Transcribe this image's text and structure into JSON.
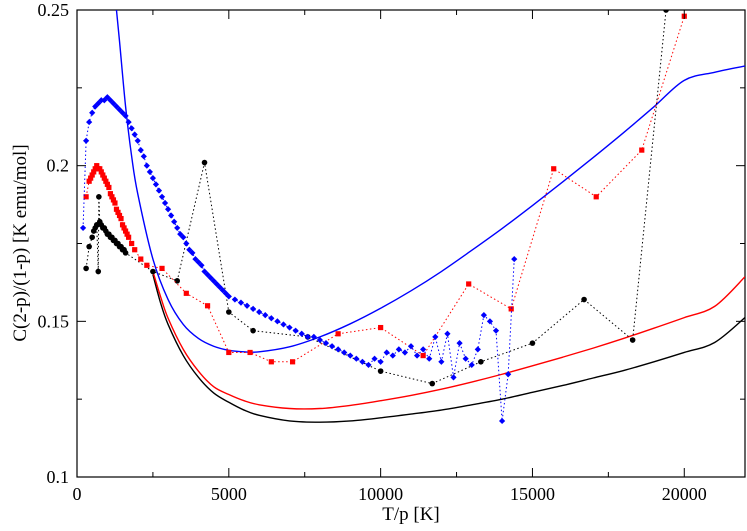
{
  "chart_data": {
    "type": "scatter",
    "title": "",
    "xlabel": "T/p [K]",
    "ylabel": "C(2-p)/(1-p) [K emu/mol]",
    "xlim": [
      0,
      22000
    ],
    "ylim": [
      0.1,
      0.25
    ],
    "xticks": [
      0,
      5000,
      10000,
      15000,
      20000
    ],
    "xtick_labels": [
      "0",
      "5000",
      "10000",
      "15000",
      "20000"
    ],
    "yticks": [
      0.1,
      0.15,
      0.2,
      0.25
    ],
    "ytick_labels": [
      "0.1",
      "0.15",
      "0.2",
      "0.25"
    ],
    "grid": false,
    "series": [
      {
        "name": "black data",
        "color": "#000000",
        "marker": "circle",
        "linestyle": "dotted",
        "x": [
          300,
          400,
          500,
          550,
          600,
          650,
          700,
          720,
          750,
          800,
          850,
          900,
          950,
          1000,
          1050,
          1100,
          1150,
          1200,
          1250,
          1300,
          1350,
          1400,
          1450,
          1500,
          1550,
          1600,
          2500,
          3300,
          4200,
          5000,
          5800,
          7600,
          10000,
          11700,
          13300,
          15000,
          16700,
          18300,
          19400
        ],
        "y": [
          0.167,
          0.174,
          0.177,
          0.179,
          0.18,
          0.181,
          0.166,
          0.19,
          0.182,
          0.181,
          0.18,
          0.18,
          0.179,
          0.178,
          0.178,
          0.177,
          0.177,
          0.176,
          0.176,
          0.175,
          0.175,
          0.174,
          0.174,
          0.173,
          0.173,
          0.172,
          0.166,
          0.163,
          0.201,
          0.153,
          0.147,
          0.145,
          0.134,
          0.13,
          0.137,
          0.143,
          0.157,
          0.144,
          0.25
        ]
      },
      {
        "name": "red data",
        "color": "#ff0000",
        "marker": "square",
        "linestyle": "dotted",
        "x": [
          300,
          400,
          450,
          500,
          550,
          600,
          650,
          700,
          750,
          800,
          850,
          900,
          950,
          1000,
          1050,
          1100,
          1150,
          1200,
          1250,
          1300,
          1350,
          1400,
          1450,
          1500,
          1550,
          1600,
          1650,
          1700,
          1800,
          1900,
          2100,
          2300,
          2800,
          3600,
          4300,
          5000,
          5700,
          6400,
          7100,
          8600,
          10000,
          11400,
          12900,
          14300,
          15700,
          17100,
          18600,
          20000
        ],
        "y": [
          0.19,
          0.195,
          0.196,
          0.197,
          0.198,
          0.199,
          0.2,
          0.199,
          0.199,
          0.198,
          0.197,
          0.196,
          0.195,
          0.194,
          0.193,
          0.191,
          0.19,
          0.189,
          0.188,
          0.186,
          0.185,
          0.184,
          0.183,
          0.181,
          0.18,
          0.179,
          0.178,
          0.177,
          0.175,
          0.173,
          0.17,
          0.168,
          0.167,
          0.159,
          0.155,
          0.14,
          0.14,
          0.137,
          0.137,
          0.146,
          0.148,
          0.139,
          0.162,
          0.154,
          0.199,
          0.19,
          0.205,
          0.248
        ]
      },
      {
        "name": "blue data",
        "color": "#0000ff",
        "marker": "diamond",
        "linestyle": "dotted",
        "x": [
          200,
          300,
          400,
          500,
          600,
          700,
          800,
          900,
          1000,
          1100,
          1200,
          1300,
          1400,
          1500,
          1600,
          1700,
          1800,
          1900,
          2000,
          2100,
          2200,
          2300,
          2400,
          2500,
          2600,
          2700,
          2800,
          2900,
          3000,
          3100,
          3200,
          3300,
          3400,
          3500,
          3600,
          3700,
          3800,
          3900,
          4000,
          4100,
          4200,
          4300,
          4400,
          4500,
          4600,
          4700,
          4800,
          4900,
          5000,
          5200,
          5400,
          5600,
          5800,
          6000,
          6200,
          6400,
          6600,
          6800,
          7000,
          7200,
          7400,
          7600,
          7800,
          8000,
          8200,
          8400,
          8600,
          8800,
          9000,
          9200,
          9400,
          9600,
          9800,
          10000,
          10200,
          10400,
          10600,
          10800,
          11000,
          11200,
          11400,
          11600,
          11800,
          12000,
          12200,
          12400,
          12600,
          12800,
          13000,
          13200,
          13400,
          13600,
          13800,
          14000,
          14200,
          14400
        ],
        "y": [
          0.18,
          0.208,
          0.214,
          0.217,
          0.219,
          0.22,
          0.221,
          0.221,
          0.222,
          0.221,
          0.22,
          0.219,
          0.218,
          0.217,
          0.216,
          0.214,
          0.212,
          0.21,
          0.208,
          0.205,
          0.203,
          0.2,
          0.198,
          0.196,
          0.194,
          0.192,
          0.19,
          0.188,
          0.186,
          0.184,
          0.182,
          0.18,
          0.178,
          0.177,
          0.175,
          0.173,
          0.172,
          0.17,
          0.169,
          0.168,
          0.166,
          0.165,
          0.164,
          0.163,
          0.162,
          0.161,
          0.16,
          0.159,
          0.158,
          0.157,
          0.156,
          0.155,
          0.154,
          0.153,
          0.152,
          0.151,
          0.15,
          0.149,
          0.148,
          0.147,
          0.146,
          0.145,
          0.145,
          0.144,
          0.143,
          0.142,
          0.141,
          0.14,
          0.139,
          0.138,
          0.137,
          0.136,
          0.138,
          0.137,
          0.14,
          0.139,
          0.141,
          0.14,
          0.142,
          0.139,
          0.141,
          0.138,
          0.145,
          0.137,
          0.146,
          0.132,
          0.143,
          0.138,
          0.136,
          0.141,
          0.152,
          0.15,
          0.147,
          0.118,
          0.133,
          0.17
        ]
      }
    ],
    "curves": [
      {
        "name": "black fit",
        "color": "#000000",
        "x": [
          2500,
          2750,
          3000,
          3500,
          4000,
          4500,
          5000,
          5500,
          6000,
          7000,
          8000,
          9000,
          10000,
          11000,
          12000,
          13000,
          14000,
          15000,
          16000,
          17000,
          18000,
          19000,
          20000,
          21000,
          22000
        ],
        "y": [
          0.165,
          0.156,
          0.149,
          0.139,
          0.132,
          0.127,
          0.124,
          0.1215,
          0.1198,
          0.118,
          0.1176,
          0.118,
          0.119,
          0.1202,
          0.1215,
          0.1232,
          0.125,
          0.1272,
          0.1294,
          0.1318,
          0.1342,
          0.137,
          0.14,
          0.1432,
          0.1512
        ]
      },
      {
        "name": "red fit",
        "color": "#ff0000",
        "x": [
          2500,
          2750,
          3000,
          3500,
          4000,
          4500,
          5000,
          5500,
          6000,
          7000,
          8000,
          9000,
          10000,
          11000,
          12000,
          13000,
          14000,
          15000,
          16000,
          17000,
          18000,
          19000,
          20000,
          21000,
          22000
        ],
        "y": [
          0.166,
          0.158,
          0.151,
          0.141,
          0.134,
          0.129,
          0.1265,
          0.1245,
          0.1232,
          0.122,
          0.122,
          0.123,
          0.1245,
          0.1262,
          0.1282,
          0.1305,
          0.133,
          0.1357,
          0.1385,
          0.1414,
          0.1445,
          0.1478,
          0.1512,
          0.1548,
          0.1643
        ]
      },
      {
        "name": "blue fit",
        "color": "#0000ff",
        "x": [
          1300,
          1400,
          1600,
          1800,
          2000,
          2500,
          3000,
          3500,
          4000,
          4500,
          5000,
          5500,
          6000,
          7000,
          8000,
          9000,
          10000,
          11000,
          12000,
          13000,
          14000,
          15000,
          16000,
          17000,
          18000,
          19000,
          20000,
          21000,
          22000
        ],
        "y": [
          0.25,
          0.24,
          0.219,
          0.203,
          0.191,
          0.17,
          0.157,
          0.149,
          0.1445,
          0.142,
          0.1407,
          0.1402,
          0.1402,
          0.1418,
          0.145,
          0.1492,
          0.1542,
          0.1598,
          0.166,
          0.1728,
          0.1798,
          0.1872,
          0.1948,
          0.2026,
          0.2106,
          0.2189,
          0.2274,
          0.23,
          0.232
        ]
      }
    ]
  }
}
